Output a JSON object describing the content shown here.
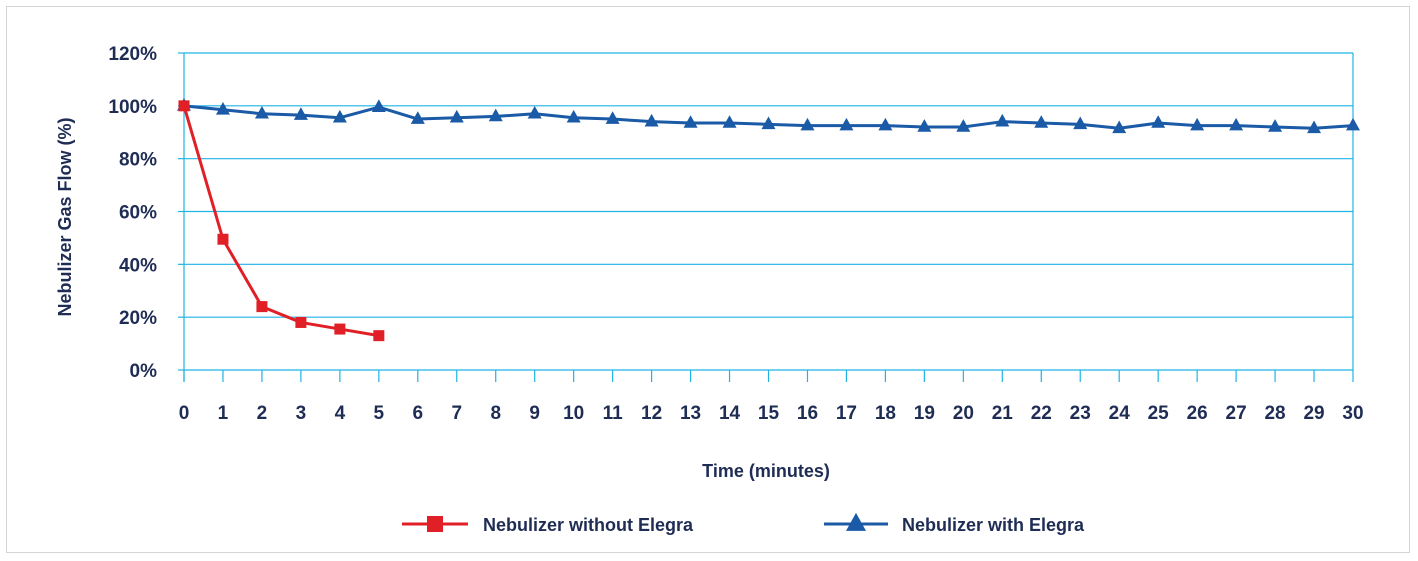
{
  "chart_data": {
    "type": "line",
    "title": "",
    "xlabel": "Time (minutes)",
    "ylabel": "Nebulizer Gas Flow (%)",
    "x": [
      0,
      1,
      2,
      3,
      4,
      5,
      6,
      7,
      8,
      9,
      10,
      11,
      12,
      13,
      14,
      15,
      16,
      17,
      18,
      19,
      20,
      21,
      22,
      23,
      24,
      25,
      26,
      27,
      28,
      29,
      30
    ],
    "x_tick_labels": [
      "0",
      "1",
      "2",
      "3",
      "4",
      "5",
      "6",
      "7",
      "8",
      "9",
      "10",
      "11",
      "12",
      "13",
      "14",
      "15",
      "16",
      "17",
      "18",
      "19",
      "20",
      "21",
      "22",
      "23",
      "24",
      "25",
      "26",
      "27",
      "28",
      "29",
      "30"
    ],
    "ylim": [
      0,
      120
    ],
    "y_ticks": [
      0,
      20,
      40,
      60,
      80,
      100,
      120
    ],
    "y_tick_labels": [
      "0%",
      "20%",
      "40%",
      "60%",
      "80%",
      "100%",
      "120%"
    ],
    "grid": true,
    "legend_position": "bottom",
    "series": [
      {
        "name": "Nebulizer without Elegra",
        "color": "#e02026",
        "marker": "square",
        "x": [
          0,
          1,
          2,
          3,
          4,
          5
        ],
        "values": [
          100,
          49.5,
          24,
          18,
          15.5,
          13
        ]
      },
      {
        "name": "Nebulizer with Elegra",
        "color": "#1a5aa6",
        "marker": "triangle",
        "x": [
          0,
          1,
          2,
          3,
          4,
          5,
          6,
          7,
          8,
          9,
          10,
          11,
          12,
          13,
          14,
          15,
          16,
          17,
          18,
          19,
          20,
          21,
          22,
          23,
          24,
          25,
          26,
          27,
          28,
          29,
          30
        ],
        "values": [
          100,
          98.5,
          97,
          96.5,
          95.5,
          99.5,
          95,
          95.5,
          96,
          97,
          95.5,
          95,
          94,
          93.5,
          93.5,
          93,
          92.5,
          92.5,
          92.5,
          92,
          92,
          94,
          93.5,
          93,
          91.5,
          93.5,
          92.5,
          92.5,
          92,
          91.5,
          92.5
        ]
      }
    ]
  }
}
